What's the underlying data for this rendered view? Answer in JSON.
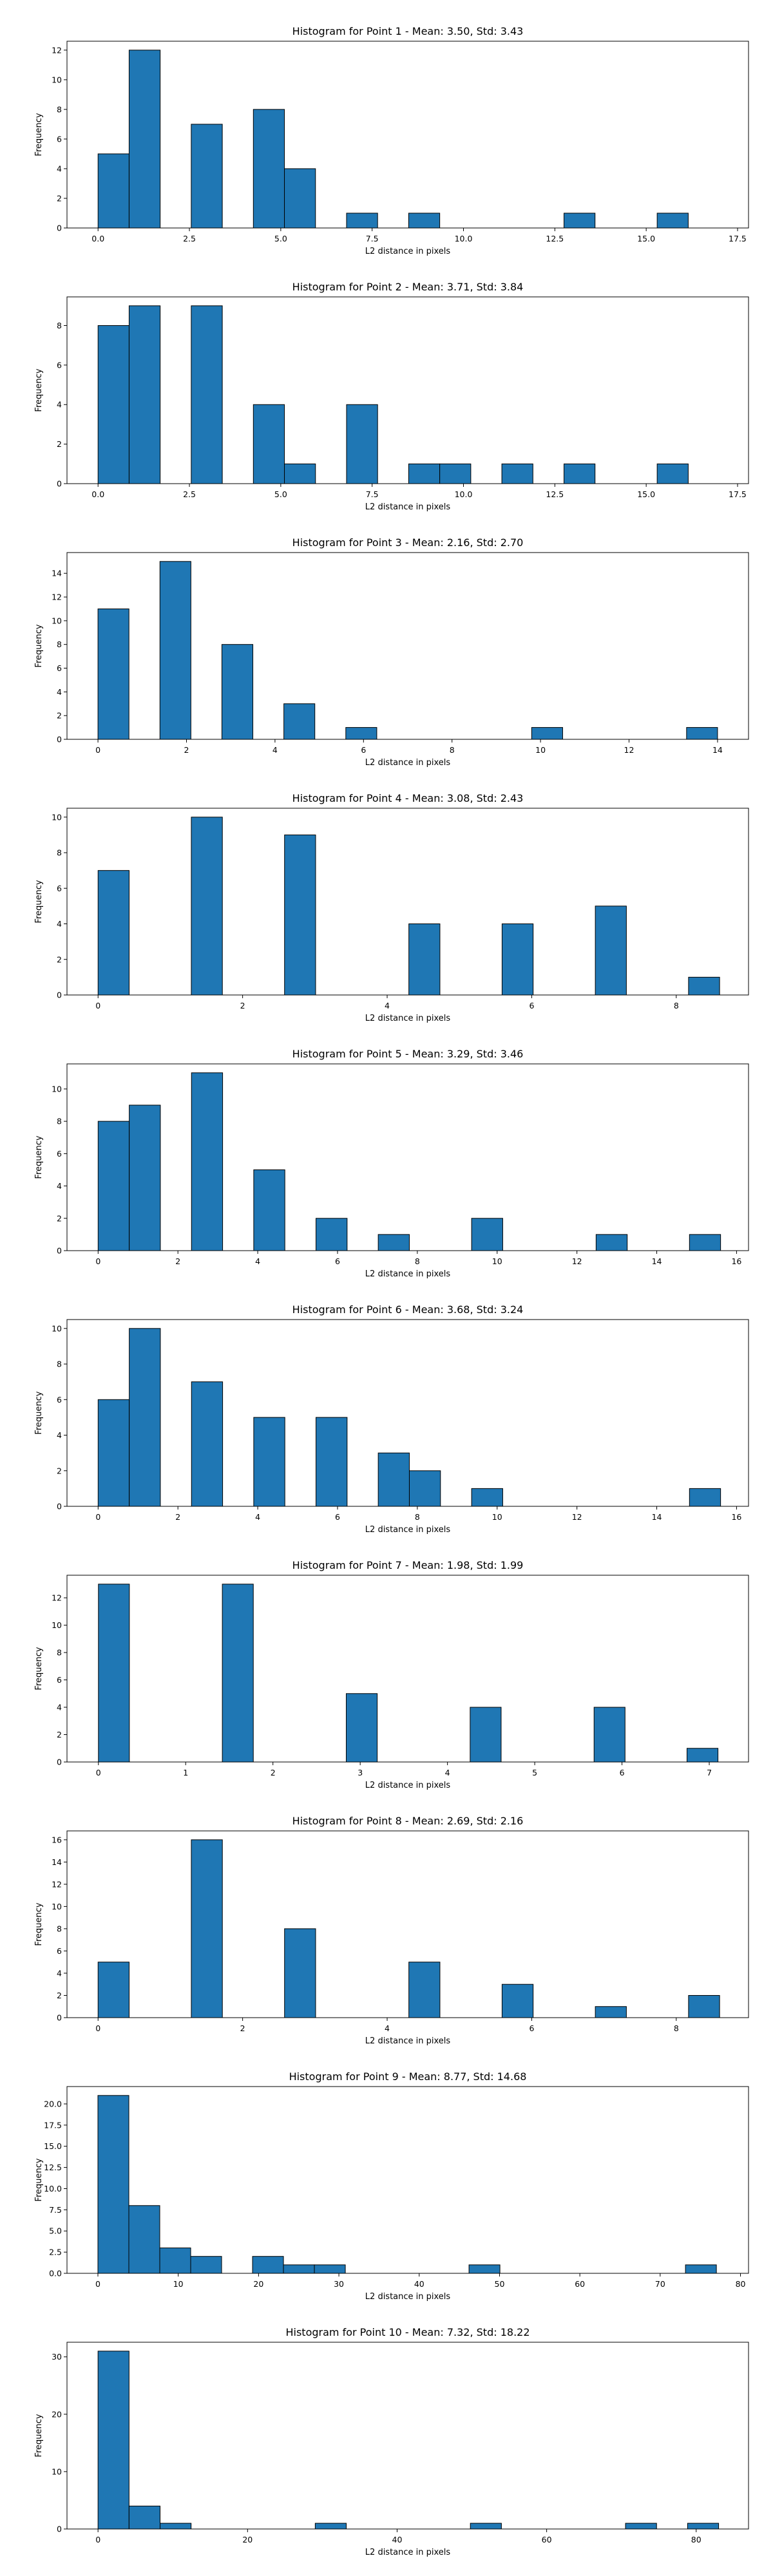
{
  "figure": {
    "background": "#ffffff",
    "bar_color": "#1f77b4",
    "edge_color": "#000000"
  },
  "chart_data": [
    {
      "type": "bar",
      "title": "Histogram for Point 1 - Mean: 3.50, Std: 3.43",
      "xlabel": "L2 distance in pixels",
      "ylabel": "Frequency",
      "xlim": [
        -0.85,
        17.8
      ],
      "ylim": [
        0,
        12.6
      ],
      "xticks": [
        0.0,
        2.5,
        5.0,
        7.5,
        10.0,
        12.5,
        15.0,
        17.5
      ],
      "xtick_labels": [
        "0.0",
        "2.5",
        "5.0",
        "7.5",
        "10.0",
        "12.5",
        "15.0",
        "17.5"
      ],
      "yticks": [
        0,
        2,
        4,
        6,
        8,
        10,
        12
      ],
      "ytick_labels": [
        "0",
        "2",
        "4",
        "6",
        "8",
        "10",
        "12"
      ],
      "grid": false,
      "bin_edges": [
        0,
        0.85,
        1.7,
        2.55,
        3.4,
        4.25,
        5.1,
        5.95,
        6.8,
        7.65,
        8.5,
        9.35,
        10.2,
        11.05,
        11.9,
        12.75,
        13.6,
        14.45,
        15.3,
        16.15,
        17.0
      ],
      "counts": [
        5,
        12,
        0,
        7,
        0,
        8,
        4,
        0,
        1,
        0,
        1,
        0,
        0,
        0,
        0,
        1,
        0,
        0,
        1,
        0
      ]
    },
    {
      "type": "bar",
      "title": "Histogram for Point 2 - Mean: 3.71, Std: 3.84",
      "xlabel": "L2 distance in pixels",
      "ylabel": "Frequency",
      "xlim": [
        -0.85,
        17.8
      ],
      "ylim": [
        0,
        9.45
      ],
      "xticks": [
        0.0,
        2.5,
        5.0,
        7.5,
        10.0,
        12.5,
        15.0,
        17.5
      ],
      "xtick_labels": [
        "0.0",
        "2.5",
        "5.0",
        "7.5",
        "10.0",
        "12.5",
        "15.0",
        "17.5"
      ],
      "yticks": [
        0,
        2,
        4,
        6,
        8
      ],
      "ytick_labels": [
        "0",
        "2",
        "4",
        "6",
        "8"
      ],
      "grid": false,
      "bin_edges": [
        0,
        0.85,
        1.7,
        2.55,
        3.4,
        4.25,
        5.1,
        5.95,
        6.8,
        7.65,
        8.5,
        9.35,
        10.2,
        11.05,
        11.9,
        12.75,
        13.6,
        14.45,
        15.3,
        16.15,
        17.0
      ],
      "counts": [
        8,
        9,
        0,
        9,
        0,
        4,
        1,
        0,
        4,
        0,
        1,
        1,
        0,
        1,
        0,
        1,
        0,
        0,
        1,
        0
      ]
    },
    {
      "type": "bar",
      "title": "Histogram for Point 3 - Mean: 2.16, Std: 2.70",
      "xlabel": "L2 distance in pixels",
      "ylabel": "Frequency",
      "xlim": [
        -0.7,
        14.7
      ],
      "ylim": [
        0,
        15.75
      ],
      "xticks": [
        0,
        2,
        4,
        6,
        8,
        10,
        12,
        14
      ],
      "xtick_labels": [
        "0",
        "2",
        "4",
        "6",
        "8",
        "10",
        "12",
        "14"
      ],
      "yticks": [
        0,
        2,
        4,
        6,
        8,
        10,
        12,
        14
      ],
      "ytick_labels": [
        "0",
        "2",
        "4",
        "6",
        "8",
        "10",
        "12",
        "14"
      ],
      "grid": false,
      "bin_edges": [
        0,
        0.7,
        1.4,
        2.1,
        2.8,
        3.5,
        4.2,
        4.9,
        5.6,
        6.3,
        7.0,
        7.7,
        8.4,
        9.1,
        9.8,
        10.5,
        11.2,
        11.9,
        12.6,
        13.3,
        14.0
      ],
      "counts": [
        11,
        0,
        15,
        0,
        8,
        0,
        3,
        0,
        1,
        0,
        0,
        0,
        0,
        0,
        1,
        0,
        0,
        0,
        0,
        1
      ]
    },
    {
      "type": "bar",
      "title": "Histogram for Point 4 - Mean: 3.08, Std: 2.43",
      "xlabel": "L2 distance in pixels",
      "ylabel": "Frequency",
      "xlim": [
        -0.43,
        9.0
      ],
      "ylim": [
        0,
        10.5
      ],
      "xticks": [
        0,
        2,
        4,
        6,
        8
      ],
      "xtick_labels": [
        "0",
        "2",
        "4",
        "6",
        "8"
      ],
      "yticks": [
        0,
        2,
        4,
        6,
        8,
        10
      ],
      "ytick_labels": [
        "0",
        "2",
        "4",
        "6",
        "8",
        "10"
      ],
      "grid": false,
      "bin_edges": [
        0,
        0.43,
        0.86,
        1.29,
        1.72,
        2.15,
        2.58,
        3.01,
        3.44,
        3.87,
        4.3,
        4.73,
        5.16,
        5.59,
        6.02,
        6.45,
        6.88,
        7.31,
        7.74,
        8.17,
        8.6
      ],
      "counts": [
        7,
        0,
        0,
        10,
        0,
        0,
        9,
        0,
        0,
        0,
        4,
        0,
        0,
        4,
        0,
        0,
        5,
        0,
        0,
        1
      ]
    },
    {
      "type": "bar",
      "title": "Histogram for Point 5 - Mean: 3.29, Std: 3.46",
      "xlabel": "L2 distance in pixels",
      "ylabel": "Frequency",
      "xlim": [
        -0.78,
        16.3
      ],
      "ylim": [
        0,
        11.55
      ],
      "xticks": [
        0,
        2,
        4,
        6,
        8,
        10,
        12,
        14,
        16
      ],
      "xtick_labels": [
        "0",
        "2",
        "4",
        "6",
        "8",
        "10",
        "12",
        "14",
        "16"
      ],
      "yticks": [
        0,
        2,
        4,
        6,
        8,
        10
      ],
      "ytick_labels": [
        "0",
        "2",
        "4",
        "6",
        "8",
        "10"
      ],
      "grid": false,
      "bin_edges": [
        0,
        0.78,
        1.56,
        2.34,
        3.12,
        3.9,
        4.68,
        5.46,
        6.24,
        7.02,
        7.8,
        8.58,
        9.36,
        10.14,
        10.92,
        11.7,
        12.48,
        13.26,
        14.04,
        14.82,
        15.6
      ],
      "counts": [
        8,
        9,
        0,
        11,
        0,
        5,
        0,
        2,
        0,
        1,
        0,
        0,
        2,
        0,
        0,
        0,
        1,
        0,
        0,
        1
      ]
    },
    {
      "type": "bar",
      "title": "Histogram for Point 6 - Mean: 3.68, Std: 3.24",
      "xlabel": "L2 distance in pixels",
      "ylabel": "Frequency",
      "xlim": [
        -0.78,
        16.3
      ],
      "ylim": [
        0,
        10.5
      ],
      "xticks": [
        0,
        2,
        4,
        6,
        8,
        10,
        12,
        14,
        16
      ],
      "xtick_labels": [
        "0",
        "2",
        "4",
        "6",
        "8",
        "10",
        "12",
        "14",
        "16"
      ],
      "yticks": [
        0,
        2,
        4,
        6,
        8,
        10
      ],
      "ytick_labels": [
        "0",
        "2",
        "4",
        "6",
        "8",
        "10"
      ],
      "grid": false,
      "bin_edges": [
        0,
        0.78,
        1.56,
        2.34,
        3.12,
        3.9,
        4.68,
        5.46,
        6.24,
        7.02,
        7.8,
        8.58,
        9.36,
        10.14,
        10.92,
        11.7,
        12.48,
        13.26,
        14.04,
        14.82,
        15.6
      ],
      "counts": [
        6,
        10,
        0,
        7,
        0,
        5,
        0,
        5,
        0,
        3,
        2,
        0,
        1,
        0,
        0,
        0,
        0,
        0,
        0,
        1
      ]
    },
    {
      "type": "bar",
      "title": "Histogram for Point 7 - Mean: 1.98, Std: 1.99",
      "xlabel": "L2 distance in pixels",
      "ylabel": "Frequency",
      "xlim": [
        -0.36,
        7.45
      ],
      "ylim": [
        0,
        13.65
      ],
      "xticks": [
        0,
        1,
        2,
        3,
        4,
        5,
        6,
        7
      ],
      "xtick_labels": [
        "0",
        "1",
        "2",
        "3",
        "4",
        "5",
        "6",
        "7"
      ],
      "yticks": [
        0,
        2,
        4,
        6,
        8,
        10,
        12
      ],
      "ytick_labels": [
        "0",
        "2",
        "4",
        "6",
        "8",
        "10",
        "12"
      ],
      "grid": false,
      "bin_edges": [
        0,
        0.355,
        0.71,
        1.065,
        1.42,
        1.775,
        2.13,
        2.485,
        2.84,
        3.195,
        3.55,
        3.905,
        4.26,
        4.615,
        4.97,
        5.325,
        5.68,
        6.035,
        6.39,
        6.745,
        7.1
      ],
      "counts": [
        13,
        0,
        0,
        0,
        13,
        0,
        0,
        0,
        5,
        0,
        0,
        0,
        4,
        0,
        0,
        0,
        4,
        0,
        0,
        1
      ]
    },
    {
      "type": "bar",
      "title": "Histogram for Point 8 - Mean: 2.69, Std: 2.16",
      "xlabel": "L2 distance in pixels",
      "ylabel": "Frequency",
      "xlim": [
        -0.43,
        9.0
      ],
      "ylim": [
        0,
        16.8
      ],
      "xticks": [
        0,
        2,
        4,
        6,
        8
      ],
      "xtick_labels": [
        "0",
        "2",
        "4",
        "6",
        "8"
      ],
      "yticks": [
        0,
        2,
        4,
        6,
        8,
        10,
        12,
        14,
        16
      ],
      "ytick_labels": [
        "0",
        "2",
        "4",
        "6",
        "8",
        "10",
        "12",
        "14",
        "16"
      ],
      "grid": false,
      "bin_edges": [
        0,
        0.43,
        0.86,
        1.29,
        1.72,
        2.15,
        2.58,
        3.01,
        3.44,
        3.87,
        4.3,
        4.73,
        5.16,
        5.59,
        6.02,
        6.45,
        6.88,
        7.31,
        7.74,
        8.17,
        8.6
      ],
      "counts": [
        5,
        0,
        0,
        16,
        0,
        0,
        8,
        0,
        0,
        0,
        5,
        0,
        0,
        3,
        0,
        0,
        1,
        0,
        0,
        2
      ]
    },
    {
      "type": "bar",
      "title": "Histogram for Point 9 - Mean: 8.77, Std: 14.68",
      "xlabel": "L2 distance in pixels",
      "ylabel": "Frequency",
      "xlim": [
        -3.85,
        81.0
      ],
      "ylim": [
        0,
        22.05
      ],
      "xticks": [
        0,
        10,
        20,
        30,
        40,
        50,
        60,
        70,
        80
      ],
      "xtick_labels": [
        "0",
        "10",
        "20",
        "30",
        "40",
        "50",
        "60",
        "70",
        "80"
      ],
      "yticks": [
        0,
        2.5,
        5.0,
        7.5,
        10.0,
        12.5,
        15.0,
        17.5,
        20.0
      ],
      "ytick_labels": [
        "0.0",
        "2.5",
        "5.0",
        "7.5",
        "10.0",
        "12.5",
        "15.0",
        "17.5",
        "20.0"
      ],
      "grid": false,
      "bin_edges": [
        0,
        3.85,
        7.7,
        11.55,
        15.4,
        19.25,
        23.1,
        26.95,
        30.8,
        34.65,
        38.5,
        42.35,
        46.2,
        50.05,
        53.9,
        57.75,
        61.6,
        65.45,
        69.3,
        73.15,
        77.0
      ],
      "counts": [
        21,
        8,
        3,
        2,
        0,
        2,
        1,
        1,
        0,
        0,
        0,
        0,
        1,
        0,
        0,
        0,
        0,
        0,
        0,
        1
      ]
    },
    {
      "type": "bar",
      "title": "Histogram for Point 10 - Mean: 7.32, Std: 18.22",
      "xlabel": "L2 distance in pixels",
      "ylabel": "Frequency",
      "xlim": [
        -4.15,
        87.0
      ],
      "ylim": [
        0,
        32.55
      ],
      "xticks": [
        0,
        20,
        40,
        60,
        80
      ],
      "xtick_labels": [
        "0",
        "20",
        "40",
        "60",
        "80"
      ],
      "yticks": [
        0,
        10,
        20,
        30
      ],
      "ytick_labels": [
        "0",
        "10",
        "20",
        "30"
      ],
      "grid": false,
      "bin_edges": [
        0,
        4.15,
        8.3,
        12.45,
        16.6,
        20.75,
        24.9,
        29.05,
        33.2,
        37.35,
        41.5,
        45.65,
        49.8,
        53.95,
        58.1,
        62.25,
        66.4,
        70.55,
        74.7,
        78.85,
        83.0
      ],
      "counts": [
        31,
        4,
        1,
        0,
        0,
        0,
        0,
        1,
        0,
        0,
        0,
        0,
        1,
        0,
        0,
        0,
        0,
        1,
        0,
        1
      ]
    }
  ]
}
